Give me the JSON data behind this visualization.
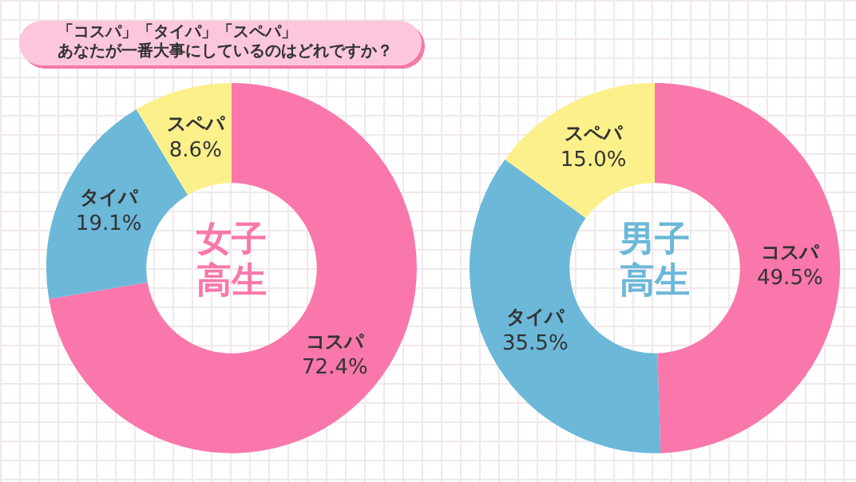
{
  "chart_data": [
    {
      "type": "donut",
      "title": "「コスパ」「タイパ」「スペパ」",
      "subtitle": "あなたが一番大事にしているのはどれですか？",
      "annotations": [
        "女子高生"
      ],
      "categories": [
        "コスパ",
        "タイパ",
        "スペパ"
      ],
      "values": [
        72.4,
        19.1,
        8.6
      ],
      "value_labels": [
        "72.4%",
        "19.1%",
        "8.6%"
      ],
      "colors": [
        "#f977ab",
        "#6bb8d9",
        "#fbf08a"
      ]
    },
    {
      "type": "donut",
      "annotations": [
        "男子高生"
      ],
      "categories": [
        "コスパ",
        "タイパ",
        "スペパ"
      ],
      "values": [
        49.5,
        35.5,
        15.0
      ],
      "value_labels": [
        "49.5%",
        "35.5%",
        "15.0%"
      ],
      "colors": [
        "#f977ab",
        "#6bb8d9",
        "#fbf08a"
      ]
    }
  ]
}
